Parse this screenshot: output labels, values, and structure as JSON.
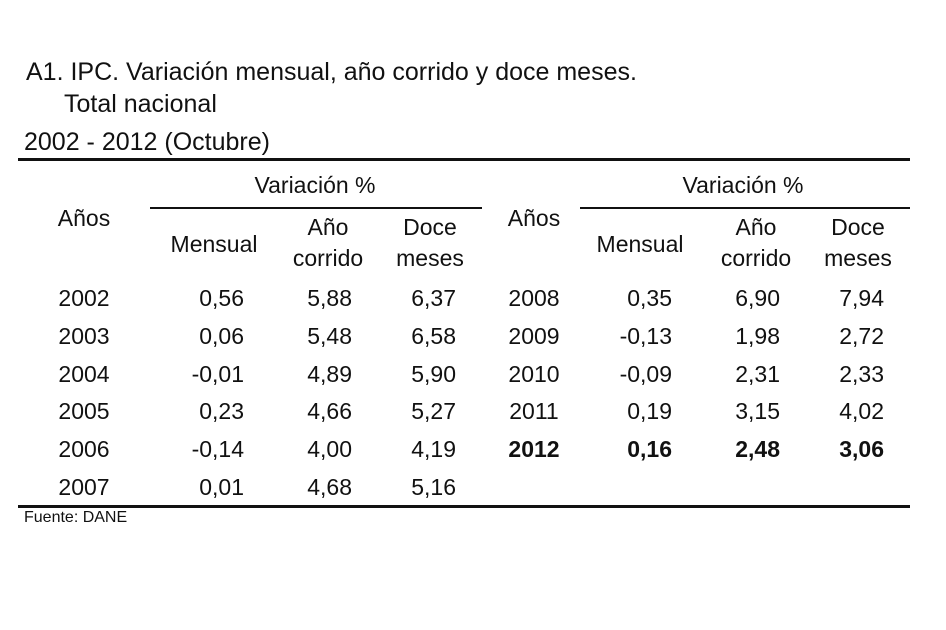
{
  "title": "A1. IPC. Variación mensual, año corrido y doce meses.",
  "subtitle": "Total nacional",
  "period": "2002 - 2012 (Octubre)",
  "headers": {
    "years": "Años",
    "variation": "Variación %",
    "monthly": "Mensual",
    "ytd_line1": "Año",
    "ytd_line2": "corrido",
    "twelve_line1": "Doce",
    "twelve_line2": "meses"
  },
  "left_rows": [
    {
      "year": "2002",
      "monthly": "0,56",
      "ytd": "5,88",
      "twelve": "6,37"
    },
    {
      "year": "2003",
      "monthly": "0,06",
      "ytd": "5,48",
      "twelve": "6,58"
    },
    {
      "year": "2004",
      "monthly": "-0,01",
      "ytd": "4,89",
      "twelve": "5,90"
    },
    {
      "year": "2005",
      "monthly": "0,23",
      "ytd": "4,66",
      "twelve": "5,27"
    },
    {
      "year": "2006",
      "monthly": "-0,14",
      "ytd": "4,00",
      "twelve": "4,19"
    },
    {
      "year": "2007",
      "monthly": "0,01",
      "ytd": "4,68",
      "twelve": "5,16"
    }
  ],
  "right_rows": [
    {
      "year": "2008",
      "monthly": "0,35",
      "ytd": "6,90",
      "twelve": "7,94"
    },
    {
      "year": "2009",
      "monthly": "-0,13",
      "ytd": "1,98",
      "twelve": "2,72"
    },
    {
      "year": "2010",
      "monthly": "-0,09",
      "ytd": "2,31",
      "twelve": "2,33"
    },
    {
      "year": "2011",
      "monthly": "0,19",
      "ytd": "3,15",
      "twelve": "4,02"
    },
    {
      "year": "2012",
      "monthly": "0,16",
      "ytd": "2,48",
      "twelve": "3,06"
    }
  ],
  "source": "Fuente: DANE"
}
